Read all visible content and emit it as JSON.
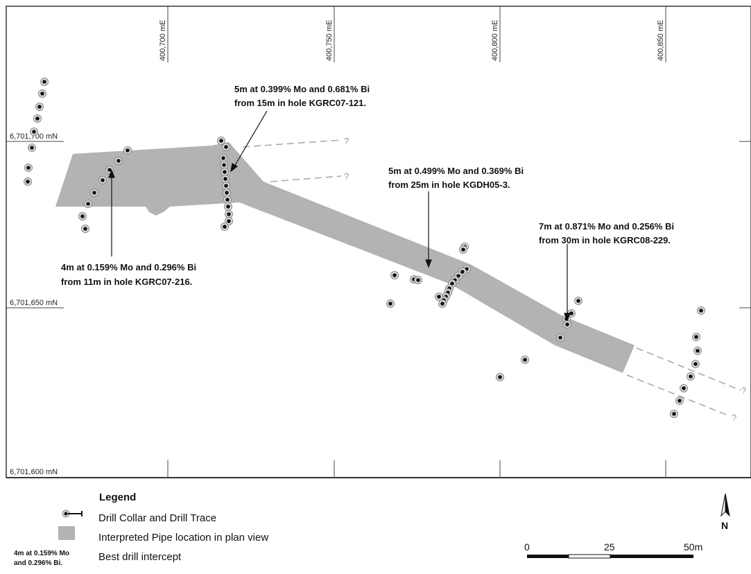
{
  "map": {
    "easting_labels": [
      "400,700 mE",
      "400,750 mE",
      "400,800 mE",
      "400,850 mE"
    ],
    "northing_labels": [
      "6,701,700 mN",
      "6,701,650 mN",
      "6,701,600 mN"
    ],
    "question_mark": "?"
  },
  "callouts": [
    {
      "line1": "5m at 0.399% Mo and 0.681% Bi",
      "line2": "from 15m in hole KGRC07-121."
    },
    {
      "line1": "5m at 0.499% Mo and 0.369% Bi",
      "line2": "from 25m in hole KGDH05-3."
    },
    {
      "line1": "7m at 0.871% Mo and 0.256% Bi",
      "line2": "from 30m in hole KGRC08-229."
    },
    {
      "line1": "4m at 0.159% Mo and 0.296% Bi",
      "line2": "from 11m in hole KGRC07-216."
    }
  ],
  "legend": {
    "title": "Legend",
    "drill_label": "Drill Collar and Drill Trace",
    "pipe_label": "Interpreted Pipe location in plan view",
    "intercept_sample_line1": "4m at 0.159% Mo",
    "intercept_sample_line2": "and 0.296% Bi.",
    "intercept_label": "Best drill intercept"
  },
  "scale_bar": {
    "labels": [
      "0",
      "25",
      "50m"
    ]
  },
  "north_arrow": {
    "label": "N"
  },
  "colors": {
    "pipe": "#b3b3b3",
    "frame": "#333333",
    "dashed_trace": "#a6a6a6",
    "collar": "#111111"
  }
}
